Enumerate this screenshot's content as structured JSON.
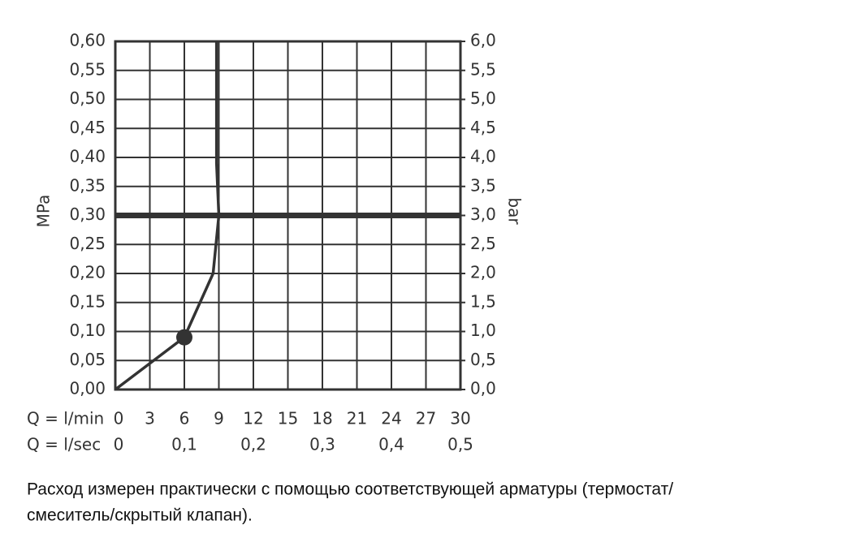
{
  "chart_data": {
    "type": "line",
    "y_label": "MPa",
    "y2_label": "bar",
    "x_label": "Q = l/min",
    "x2_label": "Q = l/sec",
    "xlim": [
      0,
      30
    ],
    "xticks": [
      0,
      3,
      6,
      9,
      12,
      15,
      18,
      21,
      24,
      27,
      30
    ],
    "x2lim": [
      0,
      0.5
    ],
    "x2ticks": [
      0,
      {
        "value": 0.1,
        "label": "0,1"
      },
      {
        "value": 0.2,
        "label": "0,2"
      },
      {
        "value": 0.3,
        "label": "0,3"
      },
      {
        "value": 0.4,
        "label": "0,4"
      },
      {
        "value": 0.5,
        "label": "0,5"
      }
    ],
    "ylim": [
      0,
      0.6
    ],
    "yticks": [
      {
        "value": 0,
        "label": "0,00"
      },
      {
        "value": 0.05,
        "label": "0,05"
      },
      {
        "value": 0.1,
        "label": "0,10"
      },
      {
        "value": 0.15,
        "label": "0,15"
      },
      {
        "value": 0.2,
        "label": "0,20"
      },
      {
        "value": 0.25,
        "label": "0,25"
      },
      {
        "value": 0.3,
        "label": "0,30"
      },
      {
        "value": 0.35,
        "label": "0,35"
      },
      {
        "value": 0.4,
        "label": "0,40"
      },
      {
        "value": 0.45,
        "label": "0,45"
      },
      {
        "value": 0.5,
        "label": "0,50"
      },
      {
        "value": 0.55,
        "label": "0,55"
      },
      {
        "value": 0.6,
        "label": "0,60"
      }
    ],
    "y2lim": [
      0,
      6
    ],
    "y2ticks": [
      {
        "value": 0,
        "label": "0,0"
      },
      {
        "value": 0.5,
        "label": "0,5"
      },
      {
        "value": 1,
        "label": "1,0"
      },
      {
        "value": 1.5,
        "label": "1,5"
      },
      {
        "value": 2,
        "label": "2,0"
      },
      {
        "value": 2.5,
        "label": "2,5"
      },
      {
        "value": 3,
        "label": "3,0"
      },
      {
        "value": 3.5,
        "label": "3,5"
      },
      {
        "value": 4,
        "label": "4,0"
      },
      {
        "value": 4.5,
        "label": "4,5"
      },
      {
        "value": 5,
        "label": "5,0"
      },
      {
        "value": 5.5,
        "label": "5,5"
      },
      {
        "value": 6,
        "label": "6,0"
      }
    ],
    "grid": true,
    "color": "#333333",
    "series": [
      {
        "x": [
          0,
          6,
          8.5,
          9,
          8.8,
          8.8
        ],
        "values": [
          0,
          0.09,
          0.2,
          0.3,
          0.39,
          0.6
        ]
      }
    ],
    "marker": {
      "x": 6,
      "y": 0.09
    },
    "ref_y": 0.3,
    "drop_x": 9,
    "caption": [
      "Расход измерен практически с помощью соответствующей арматуры (термостат/",
      "смеситель/скрытый клапан)."
    ]
  }
}
